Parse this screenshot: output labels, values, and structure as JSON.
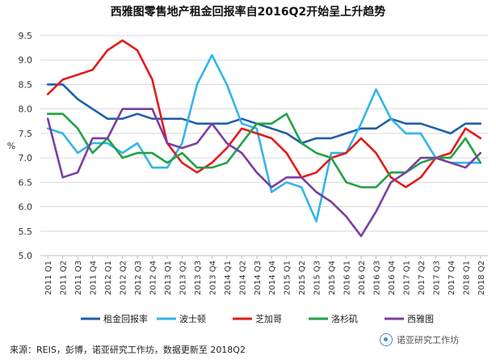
{
  "title": "西雅图零售地产租金回报率自2016Q2开始呈上升趋势",
  "source": "来源：REIS，彭博，诺亚研究工作坊，数据更新至 2018Q2",
  "watermark": "诺亚研究工作坊",
  "chart_data": {
    "type": "line",
    "ylabel": "%",
    "ylim": [
      5.0,
      9.5
    ],
    "yticks": [
      5.0,
      5.5,
      6.0,
      6.5,
      7.0,
      7.5,
      8.0,
      8.5,
      9.0,
      9.5
    ],
    "grid": "horizontal",
    "legend": "bottom",
    "categories": [
      "2011 Q1",
      "2011 Q2",
      "2011 Q3",
      "2011 Q4",
      "2012 Q1",
      "2012 Q2",
      "2012 Q3",
      "2012 Q4",
      "2013 Q1",
      "2013 Q2",
      "2013 Q3",
      "2013 Q4",
      "2014 Q1",
      "2014 Q2",
      "2014 Q3",
      "2014 Q4",
      "2015 Q1",
      "2015 Q2",
      "2015 Q3",
      "2015 Q4",
      "2016 Q1",
      "2016 Q2",
      "2016 Q3",
      "2016 Q4",
      "2017 Q1",
      "2017 Q2",
      "2017 Q3",
      "2017 Q4",
      "2018 Q1",
      "2018 Q2"
    ],
    "series": [
      {
        "name": "租金回报率",
        "color": "#1f5fa8",
        "values": [
          8.5,
          8.5,
          8.2,
          8.0,
          7.8,
          7.8,
          7.9,
          7.8,
          7.8,
          7.8,
          7.7,
          7.7,
          7.7,
          7.8,
          7.7,
          7.6,
          7.5,
          7.3,
          7.4,
          7.4,
          7.5,
          7.6,
          7.6,
          7.8,
          7.7,
          7.7,
          7.6,
          7.5,
          7.7,
          7.7
        ]
      },
      {
        "name": "波士顿",
        "color": "#33b5e8",
        "values": [
          7.6,
          7.5,
          7.1,
          7.3,
          7.3,
          7.1,
          7.3,
          6.8,
          6.8,
          7.3,
          8.5,
          9.1,
          8.5,
          7.7,
          7.6,
          6.3,
          6.5,
          6.4,
          5.7,
          7.1,
          7.1,
          7.7,
          8.4,
          7.8,
          7.5,
          7.5,
          7.0,
          6.9,
          6.9,
          6.9
        ]
      },
      {
        "name": "芝加哥",
        "color": "#e31b1b",
        "values": [
          8.3,
          8.6,
          8.7,
          8.8,
          9.2,
          9.4,
          9.2,
          8.6,
          7.3,
          6.9,
          6.7,
          6.9,
          7.2,
          7.6,
          7.5,
          7.4,
          7.1,
          6.6,
          6.7,
          7.0,
          7.1,
          7.4,
          7.1,
          6.6,
          6.4,
          6.6,
          7.0,
          7.1,
          7.6,
          7.4
        ]
      },
      {
        "name": "洛杉矶",
        "color": "#21a345",
        "values": [
          7.9,
          7.9,
          7.6,
          7.1,
          7.4,
          7.0,
          7.1,
          7.1,
          6.9,
          7.1,
          6.8,
          6.8,
          6.9,
          7.3,
          7.7,
          7.7,
          7.9,
          7.3,
          7.1,
          7.0,
          6.5,
          6.4,
          6.4,
          6.7,
          6.7,
          6.9,
          7.0,
          7.0,
          7.4,
          6.9
        ]
      },
      {
        "name": "西雅图",
        "color": "#7b3fa0",
        "values": [
          7.8,
          6.6,
          6.7,
          7.4,
          7.4,
          8.0,
          8.0,
          8.0,
          7.3,
          7.2,
          7.3,
          7.7,
          7.3,
          7.1,
          6.7,
          6.4,
          6.6,
          6.6,
          6.3,
          6.1,
          5.8,
          5.4,
          5.9,
          6.5,
          6.7,
          7.0,
          7.0,
          6.9,
          6.8,
          7.1
        ]
      }
    ]
  }
}
